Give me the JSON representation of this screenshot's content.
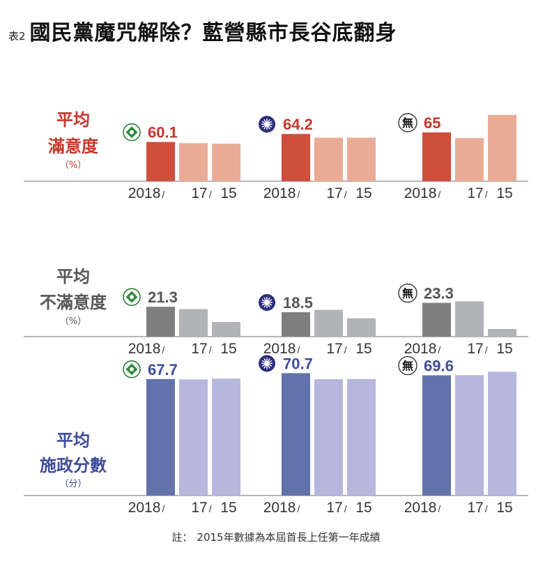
{
  "header": {
    "tag": "表2",
    "title": "國民黨魔咒解除？藍營縣市長谷底翻身"
  },
  "chart_data": {
    "type": "bar",
    "categories": [
      "2018/",
      "17/",
      "15"
    ],
    "groups": [
      {
        "party": "民進黨",
        "icon": "dpp-flag-icon"
      },
      {
        "party": "國民黨",
        "icon": "kmt-sun-icon"
      },
      {
        "party": "無黨籍",
        "icon": "independent-icon",
        "icon_text": "無"
      }
    ],
    "panels": [
      {
        "id": "satisfaction",
        "label_lines": [
          "平均",
          "滿意度"
        ],
        "unit": "（%）",
        "label_color": "#c8352b",
        "value_color": "#c8352b",
        "colors": [
          "#cd4f3c",
          "#eaab96"
        ],
        "series": [
          {
            "name": "民進黨",
            "values": [
              60.1,
              59.5,
              59.2
            ],
            "label": "60.1"
          },
          {
            "name": "國民黨",
            "values": [
              64.2,
              62.3,
              62.3
            ],
            "label": "64.2"
          },
          {
            "name": "無黨籍",
            "values": [
              65,
              62.1,
              74.0
            ],
            "label": "65"
          }
        ]
      },
      {
        "id": "dissatisfaction",
        "label_lines": [
          "平均",
          "不滿意度"
        ],
        "unit": "（%）",
        "label_color": "#555555",
        "value_color": "#555555",
        "colors": [
          "#7f7f7f",
          "#b2b3b6"
        ],
        "series": [
          {
            "name": "民進黨",
            "values": [
              21.3,
              20.1,
              13.5
            ],
            "label": "21.3"
          },
          {
            "name": "國民黨",
            "values": [
              18.5,
              19.7,
              15.4
            ],
            "label": "18.5"
          },
          {
            "name": "無黨籍",
            "values": [
              23.3,
              24.1,
              9.9
            ],
            "label": "23.3"
          }
        ]
      },
      {
        "id": "score",
        "label_lines": [
          "平均",
          "施政分數"
        ],
        "unit": "（分）",
        "label_color": "#3d4c9a",
        "value_color": "#3d4c9a",
        "colors": [
          "#6272ab",
          "#b5b7dc"
        ],
        "series": [
          {
            "name": "民進黨",
            "values": [
              67.7,
              67.5,
              67.9
            ],
            "label": "67.7"
          },
          {
            "name": "國民黨",
            "values": [
              70.7,
              67.6,
              67.7
            ],
            "label": "70.7"
          },
          {
            "name": "無黨籍",
            "values": [
              69.6,
              69.7,
              71.4
            ],
            "label": "69.6"
          }
        ]
      }
    ]
  },
  "footnote": {
    "prefix": "註：",
    "text": "2015年數據為本屆首長上任第一年成績"
  }
}
